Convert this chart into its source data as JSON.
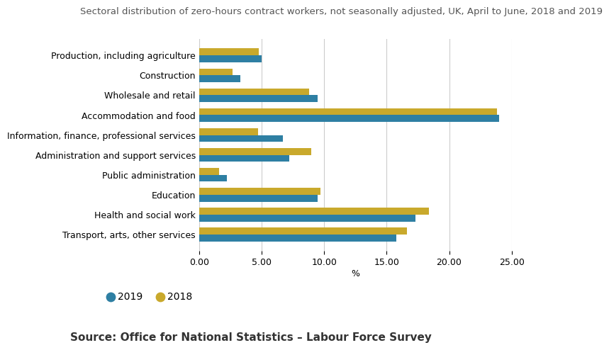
{
  "title": "Sectoral distribution of zero-hours contract workers, not seasonally adjusted, UK, April to June, 2018 and 2019",
  "categories": [
    "Production, including agriculture",
    "Construction",
    "Wholesale and retail",
    "Accommodation and food",
    "Information, finance, professional services",
    "Administration and support services",
    "Public administration",
    "Education",
    "Health and social work",
    "Transport, arts, other services"
  ],
  "values_2019": [
    5.0,
    3.3,
    9.5,
    24.0,
    6.7,
    7.2,
    2.2,
    9.5,
    17.3,
    15.8
  ],
  "values_2018": [
    4.8,
    2.7,
    8.8,
    23.8,
    4.7,
    9.0,
    1.6,
    9.7,
    18.4,
    16.6
  ],
  "color_2019": "#2e7fa3",
  "color_2018": "#c9a92c",
  "xlabel": "%",
  "xlim": [
    0,
    25
  ],
  "xticks": [
    0.0,
    5.0,
    10.0,
    15.0,
    20.0,
    25.0
  ],
  "xtick_labels": [
    "0.00",
    "5.00",
    "10.00",
    "15.00",
    "20.00",
    "25.00"
  ],
  "source_text": "Source: Office for National Statistics – Labour Force Survey",
  "background_color": "#ffffff",
  "grid_color": "#cccccc",
  "label_2019": "2019",
  "label_2018": "2018",
  "title_fontsize": 9.5,
  "axis_label_fontsize": 9,
  "tick_label_fontsize": 9,
  "category_fontsize": 9,
  "source_fontsize": 11
}
